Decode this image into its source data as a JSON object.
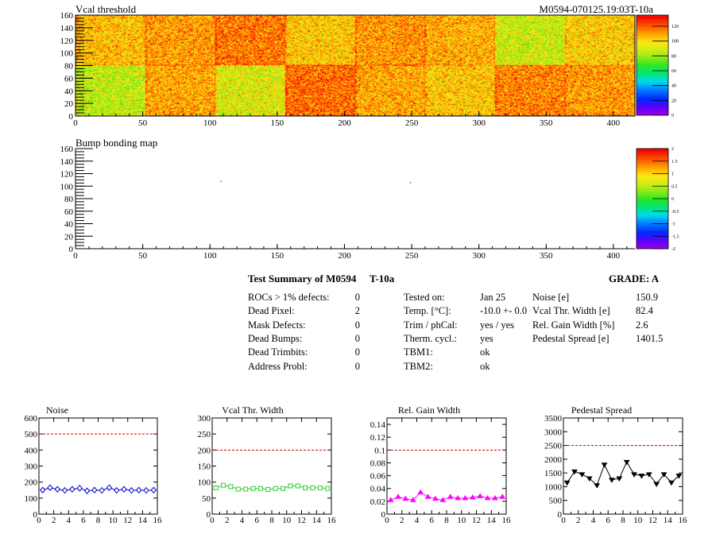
{
  "header": {
    "vcal_title": "Vcal threshold",
    "module_id": "M0594-070125.19:03T-10a",
    "bump_title": "Bump bonding map"
  },
  "summary": {
    "title": "Test Summary of M0594",
    "temp_tag": "T-10a",
    "grade_label": "GRADE:  A",
    "left": [
      {
        "label": "ROCs > 1% defects:",
        "value": "0"
      },
      {
        "label": "Dead Pixel:",
        "value": "2"
      },
      {
        "label": "Mask Defects:",
        "value": "0"
      },
      {
        "label": "Dead Bumps:",
        "value": "0"
      },
      {
        "label": "Dead Trimbits:",
        "value": "0"
      },
      {
        "label": "Address Probl:",
        "value": "0"
      }
    ],
    "middle": [
      {
        "label": "Tested on:",
        "value": "Jan 25"
      },
      {
        "label": "Temp. [°C]:",
        "value": "-10.0 +- 0.0"
      },
      {
        "label": "Trim / phCal:",
        "value": "yes / yes"
      },
      {
        "label": "Therm. cycl.:",
        "value": "yes"
      },
      {
        "label": "TBM1:",
        "value": "ok"
      },
      {
        "label": "TBM2:",
        "value": "ok"
      }
    ],
    "right": [
      {
        "label": "Noise [e]",
        "value": "150.9"
      },
      {
        "label": "Vcal Thr. Width [e]",
        "value": "82.4"
      },
      {
        "label": "Rel. Gain Width [%]",
        "value": "2.6"
      },
      {
        "label": "Pedestal Spread [e]",
        "value": "1401.5"
      }
    ]
  },
  "colors": {
    "noise": "#0000cc",
    "vcal": "#33cc33",
    "gain": "#ff00ff",
    "pedestal": "#000000",
    "limit": "#cc0000"
  },
  "chart_data": [
    {
      "type": "heatmap",
      "title": "Vcal threshold",
      "xlim": [
        0,
        416
      ],
      "ylim": [
        0,
        160
      ],
      "xticks": [
        0,
        50,
        100,
        150,
        200,
        250,
        300,
        350,
        400
      ],
      "yticks": [
        0,
        20,
        40,
        60,
        80,
        100,
        120,
        140,
        160
      ],
      "zticks": [
        0,
        20,
        40,
        60,
        80,
        100,
        120
      ],
      "zlim": [
        0,
        135
      ],
      "roc_means": {
        "top": [
          106,
          112,
          118,
          104,
          113,
          109,
          90,
          103
        ],
        "bottom": [
          88,
          110,
          93,
          120,
          110,
          104,
          116,
          112
        ]
      }
    },
    {
      "type": "heatmap",
      "title": "Bump bonding map",
      "xlim": [
        0,
        416
      ],
      "ylim": [
        0,
        160
      ],
      "xticks": [
        0,
        50,
        100,
        150,
        200,
        250,
        300,
        350,
        400
      ],
      "yticks": [
        0,
        20,
        40,
        60,
        80,
        100,
        120,
        140,
        160
      ],
      "zticks": [
        -2,
        -1.5,
        -1,
        -0.5,
        0,
        0.5,
        1,
        1.5,
        2
      ],
      "zlim": [
        -2,
        2
      ],
      "points": [
        {
          "x": 108,
          "y": 108
        },
        {
          "x": 249,
          "y": 106
        }
      ]
    },
    {
      "type": "line",
      "title": "Noise",
      "x": [
        0,
        1,
        2,
        3,
        4,
        5,
        6,
        7,
        8,
        9,
        10,
        11,
        12,
        13,
        14,
        15
      ],
      "values": [
        150,
        165,
        155,
        148,
        155,
        162,
        145,
        150,
        148,
        165,
        148,
        155,
        148,
        150,
        148,
        150
      ],
      "xlim": [
        0,
        16
      ],
      "ylim": [
        0,
        600
      ],
      "xticks": [
        0,
        2,
        4,
        6,
        8,
        10,
        12,
        14,
        16
      ],
      "yticks": [
        0,
        100,
        200,
        300,
        400,
        500,
        600
      ],
      "limit": 500,
      "marker": "diamond-open",
      "color": "#0000cc"
    },
    {
      "type": "line",
      "title": "Vcal Thr. Width",
      "x": [
        0,
        1,
        2,
        3,
        4,
        5,
        6,
        7,
        8,
        9,
        10,
        11,
        12,
        13,
        14,
        15
      ],
      "values": [
        82,
        90,
        86,
        78,
        78,
        80,
        80,
        77,
        80,
        80,
        88,
        88,
        82,
        82,
        82,
        80
      ],
      "xlim": [
        0,
        16
      ],
      "ylim": [
        0,
        300
      ],
      "xticks": [
        0,
        2,
        4,
        6,
        8,
        10,
        12,
        14,
        16
      ],
      "yticks": [
        0,
        50,
        100,
        150,
        200,
        250,
        300
      ],
      "limit": 200,
      "marker": "square-open",
      "color": "#33cc33"
    },
    {
      "type": "line",
      "title": "Rel. Gain Width",
      "x": [
        0,
        1,
        2,
        3,
        4,
        5,
        6,
        7,
        8,
        9,
        10,
        11,
        12,
        13,
        14,
        15
      ],
      "values": [
        0.022,
        0.027,
        0.024,
        0.022,
        0.034,
        0.027,
        0.024,
        0.022,
        0.027,
        0.025,
        0.025,
        0.026,
        0.028,
        0.025,
        0.025,
        0.027
      ],
      "xlim": [
        0,
        16
      ],
      "ylim": [
        0,
        0.15
      ],
      "xticks": [
        0,
        2,
        4,
        6,
        8,
        10,
        12,
        14,
        16
      ],
      "yticks": [
        0,
        0.02,
        0.04,
        0.06,
        0.08,
        0.1,
        0.12,
        0.14
      ],
      "ytick_labels": [
        "0",
        "0.02",
        "0.04",
        "0.06",
        "0.08",
        "0.1",
        "0.12",
        "0.14"
      ],
      "limit": 0.1,
      "marker": "triangle",
      "color": "#ff00ff"
    },
    {
      "type": "line",
      "title": "Pedestal Spread",
      "x": [
        0,
        1,
        2,
        3,
        4,
        5,
        6,
        7,
        8,
        9,
        10,
        11,
        12,
        13,
        14,
        15
      ],
      "values": [
        1150,
        1550,
        1450,
        1300,
        1050,
        1800,
        1250,
        1300,
        1900,
        1450,
        1400,
        1450,
        1100,
        1450,
        1150,
        1400
      ],
      "xlim": [
        0,
        16
      ],
      "ylim": [
        0,
        3500
      ],
      "xticks": [
        0,
        2,
        4,
        6,
        8,
        10,
        12,
        14,
        16
      ],
      "yticks": [
        0,
        500,
        1000,
        1500,
        2000,
        2500,
        3000,
        3500
      ],
      "limit": 2500,
      "marker": "triangle-down",
      "color": "#000000"
    }
  ]
}
